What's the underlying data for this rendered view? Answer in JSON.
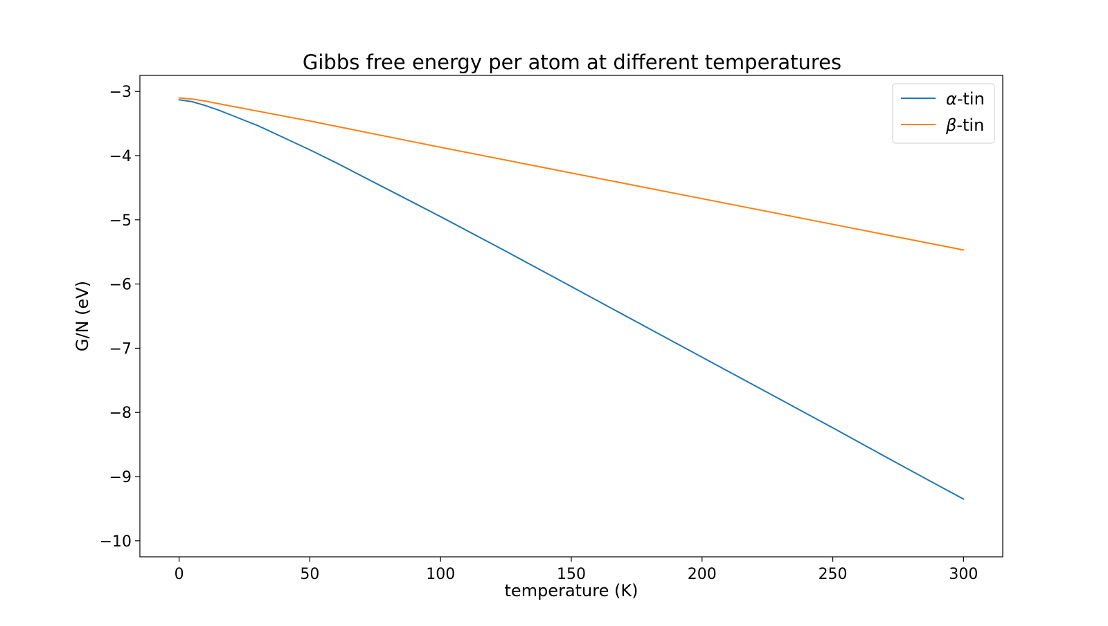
{
  "chart_data": {
    "type": "line",
    "title": "Gibbs free energy per atom at different temperatures",
    "xlabel": "temperature (K)",
    "ylabel": "G/N (eV)",
    "xlim": [
      -15,
      315
    ],
    "ylim": [
      -10.25,
      -2.75
    ],
    "xticks": [
      0,
      50,
      100,
      150,
      200,
      250,
      300
    ],
    "yticks": [
      -3,
      -4,
      -5,
      -6,
      -7,
      -8,
      -9,
      -10
    ],
    "xtick_labels": [
      "0",
      "50",
      "100",
      "150",
      "200",
      "250",
      "300"
    ],
    "ytick_labels": [
      "−3",
      "−4",
      "−5",
      "−6",
      "−7",
      "−8",
      "−9",
      "−10"
    ],
    "grid": false,
    "legend_position": "top-right",
    "series": [
      {
        "name": "α-tin",
        "symbol": "α",
        "suffix": "-tin",
        "color": "#1f77b4",
        "x": [
          0,
          5,
          10,
          15,
          20,
          25,
          30,
          40,
          50,
          60,
          70,
          80,
          90,
          100,
          125,
          150,
          175,
          200,
          225,
          250,
          275,
          290,
          300
        ],
        "y": [
          -3.13,
          -3.16,
          -3.22,
          -3.29,
          -3.37,
          -3.45,
          -3.53,
          -3.72,
          -3.91,
          -4.11,
          -4.32,
          -4.53,
          -4.74,
          -4.95,
          -5.49,
          -6.04,
          -6.59,
          -7.14,
          -7.69,
          -8.24,
          -8.8,
          -9.13,
          -9.35
        ]
      },
      {
        "name": "β-tin",
        "symbol": "β",
        "suffix": "-tin",
        "color": "#ff7f0e",
        "x": [
          0,
          5,
          10,
          20,
          50,
          100,
          150,
          200,
          250,
          300
        ],
        "y": [
          -3.1,
          -3.12,
          -3.15,
          -3.23,
          -3.46,
          -3.87,
          -4.27,
          -4.67,
          -5.07,
          -5.47
        ]
      }
    ]
  }
}
